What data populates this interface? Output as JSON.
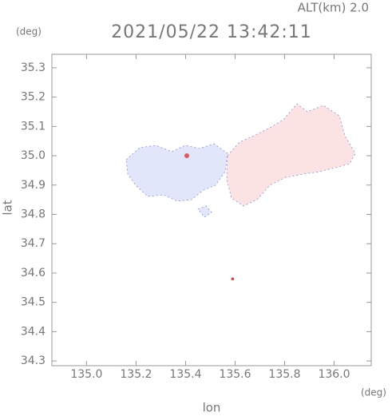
{
  "chart_data": {
    "type": "scatter",
    "title": "2021/05/22 13:42:11",
    "subtitle": "ALT(km) 2.0",
    "y_unit": "(deg)",
    "x_unit": "(deg)",
    "xlabel": "lon",
    "ylabel": "lat",
    "xlim": [
      134.86,
      136.15
    ],
    "ylim": [
      34.284,
      35.346
    ],
    "xticks": [
      {
        "value": 135,
        "label": "135.0"
      },
      135.2,
      135.4,
      135.6,
      135.8,
      {
        "value": 136,
        "label": "136.0"
      }
    ],
    "yticks": [
      34.3,
      34.4,
      34.5,
      34.6,
      34.7,
      34.8,
      34.9,
      {
        "value": 35,
        "label": "35.0"
      },
      35.1,
      35.2,
      35.3
    ],
    "x": [
      135.59
    ],
    "values": [
      34.58
    ],
    "color": "#e03a3a"
  }
}
